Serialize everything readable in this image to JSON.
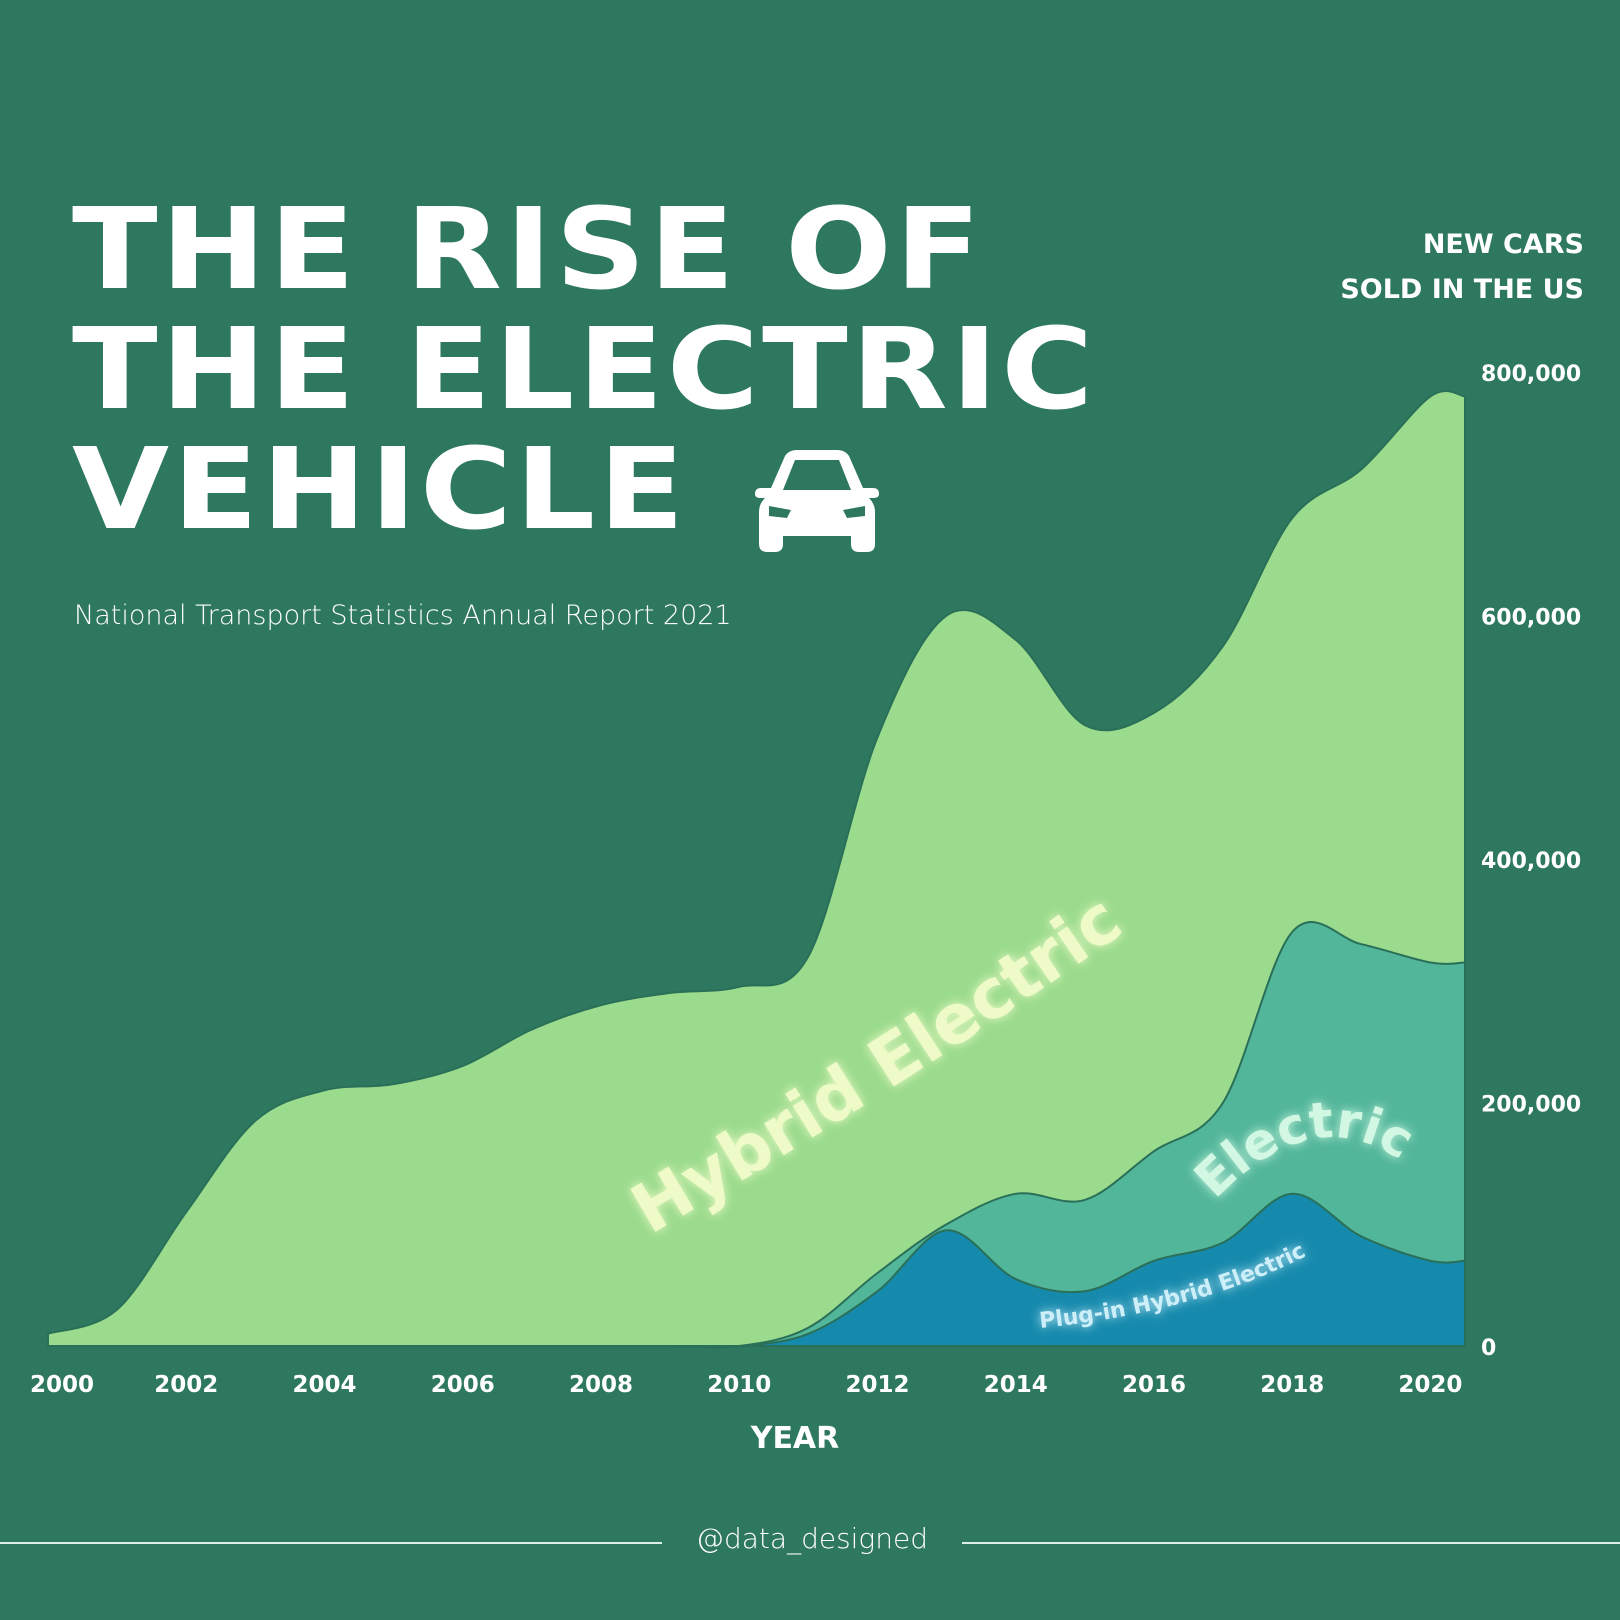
{
  "header": {
    "title_lines": [
      "THE RISE OF",
      "THE ELECTRIC",
      "VEHICLE"
    ],
    "subtitle": "National Transport Statistics Annual Report 2021",
    "car_icon": "car-icon"
  },
  "footer": {
    "handle": "@data_designed"
  },
  "colors": {
    "background": "#2e7860",
    "hybrid": "#9bdb8d",
    "electric": "#52b69a",
    "plugin": "#168aad",
    "edge": "#2a6f57"
  },
  "chart_data": {
    "type": "area",
    "title": "",
    "ylabel_lines": [
      "NEW CARS",
      "SOLD IN THE US"
    ],
    "xlabel": "YEAR",
    "x_ticks": [
      "2000",
      "2002",
      "2004",
      "2006",
      "2008",
      "2010",
      "2012",
      "2014",
      "2016",
      "2018",
      "2020"
    ],
    "y_ticks": [
      "0",
      "200,000",
      "400,000",
      "600,000",
      "800,000"
    ],
    "ylim": [
      0,
      800000
    ],
    "xlim": [
      2000,
      2020.5
    ],
    "x": [
      2000,
      2001,
      2002,
      2003,
      2004,
      2005,
      2006,
      2007,
      2008,
      2009,
      2010,
      2011,
      2012,
      2013,
      2014,
      2015,
      2016,
      2017,
      2018,
      2019,
      2020
    ],
    "series": [
      {
        "name": "Hybrid Electric",
        "label": "Hybrid Electric",
        "total_values": [
          10000,
          30000,
          110000,
          185000,
          210000,
          215000,
          230000,
          260000,
          280000,
          290000,
          295000,
          320000,
          500000,
          600000,
          580000,
          510000,
          520000,
          575000,
          680000,
          720000,
          780000
        ]
      },
      {
        "name": "Electric",
        "label": "Electric",
        "total_values": [
          0,
          0,
          0,
          0,
          0,
          0,
          0,
          0,
          0,
          0,
          0,
          15000,
          60000,
          100000,
          125000,
          120000,
          160000,
          200000,
          340000,
          330000,
          315000
        ]
      },
      {
        "name": "Plug-in Hybrid Electric",
        "label": "Plug-in Hybrid Electric",
        "values": [
          0,
          0,
          0,
          0,
          0,
          0,
          0,
          0,
          0,
          0,
          0,
          10000,
          45000,
          95000,
          55000,
          45000,
          70000,
          85000,
          125000,
          90000,
          70000
        ]
      }
    ],
    "grid": false,
    "legend": "inline labels"
  }
}
